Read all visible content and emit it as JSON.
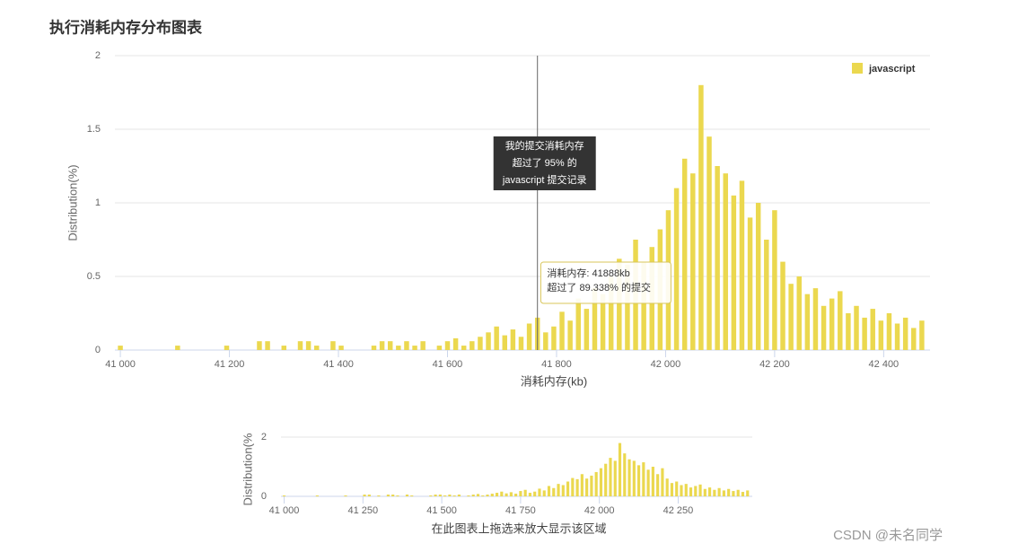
{
  "page_title": "执行消耗内存分布图表",
  "chart_data": {
    "type": "bar",
    "ylabel": "Distribution(%)",
    "xlabel": "消耗内存(kb)",
    "legend": "top-right",
    "grid": true,
    "xlim": [
      40990,
      42485
    ],
    "ylim": [
      0,
      2
    ],
    "yticks": [
      0,
      0.5,
      1,
      1.5,
      2
    ],
    "xticks": [
      {
        "value": 41000,
        "label": "41 000"
      },
      {
        "value": 41200,
        "label": "41 200"
      },
      {
        "value": 41400,
        "label": "41 400"
      },
      {
        "value": 41600,
        "label": "41 600"
      },
      {
        "value": 41800,
        "label": "41 800"
      },
      {
        "value": 42000,
        "label": "42 000"
      },
      {
        "value": 42200,
        "label": "42 200"
      },
      {
        "value": 42400,
        "label": "42 400"
      }
    ],
    "plot_line_x": 41765,
    "annotation": [
      "我的提交消耗内存",
      "超过了 95% 的",
      "javascript 提交记录"
    ],
    "tooltip": [
      "消耗内存: 41888kb",
      "超过了 89.338% 的提交"
    ],
    "tooltip_x": 41888,
    "series": [
      {
        "name": "javascript",
        "color": "#ebd84f",
        "x": [
          41000,
          41015,
          41030,
          41045,
          41060,
          41075,
          41090,
          41105,
          41120,
          41135,
          41150,
          41165,
          41180,
          41195,
          41210,
          41225,
          41240,
          41255,
          41270,
          41285,
          41300,
          41315,
          41330,
          41345,
          41360,
          41375,
          41390,
          41405,
          41420,
          41435,
          41450,
          41465,
          41480,
          41495,
          41510,
          41525,
          41540,
          41555,
          41570,
          41585,
          41600,
          41615,
          41630,
          41645,
          41660,
          41675,
          41690,
          41705,
          41720,
          41735,
          41750,
          41765,
          41780,
          41795,
          41810,
          41825,
          41840,
          41855,
          41870,
          41885,
          41900,
          41915,
          41930,
          41945,
          41960,
          41975,
          41990,
          42005,
          42020,
          42035,
          42050,
          42065,
          42080,
          42095,
          42110,
          42125,
          42140,
          42155,
          42170,
          42185,
          42200,
          42215,
          42230,
          42245,
          42260,
          42275,
          42290,
          42305,
          42320,
          42335,
          42350,
          42365,
          42380,
          42395,
          42410,
          42425,
          42440,
          42455,
          42470
        ],
        "values": [
          0.03,
          0,
          0,
          0,
          0,
          0,
          0,
          0.03,
          0,
          0,
          0,
          0,
          0,
          0.03,
          0,
          0,
          0,
          0.06,
          0.06,
          0,
          0.03,
          0,
          0.06,
          0.06,
          0.03,
          0,
          0.06,
          0.03,
          0,
          0,
          0,
          0.03,
          0.06,
          0.06,
          0.03,
          0.06,
          0.03,
          0.06,
          0,
          0.03,
          0.06,
          0.08,
          0.03,
          0.06,
          0.09,
          0.12,
          0.16,
          0.1,
          0.14,
          0.09,
          0.18,
          0.22,
          0.12,
          0.16,
          0.26,
          0.2,
          0.35,
          0.28,
          0.42,
          0.38,
          0.5,
          0.62,
          0.58,
          0.75,
          0.6,
          0.7,
          0.82,
          0.95,
          1.1,
          1.3,
          1.2,
          1.8,
          1.45,
          1.25,
          1.2,
          1.05,
          1.15,
          0.9,
          1.0,
          0.75,
          0.95,
          0.6,
          0.45,
          0.5,
          0.38,
          0.42,
          0.3,
          0.35,
          0.4,
          0.25,
          0.3,
          0.22,
          0.28,
          0.2,
          0.25,
          0.18,
          0.22,
          0.15,
          0.2
        ]
      }
    ]
  },
  "navigator": {
    "ylabel": "Distribution(%",
    "caption": "在此图表上拖选来放大显示该区域",
    "ylim": [
      0,
      2
    ],
    "yticks": [
      0,
      2
    ],
    "xticks": [
      {
        "value": 41000,
        "label": "41 000"
      },
      {
        "value": 41250,
        "label": "41 250"
      },
      {
        "value": 41500,
        "label": "41 500"
      },
      {
        "value": 41750,
        "label": "41 750"
      },
      {
        "value": 42000,
        "label": "42 000"
      },
      {
        "value": 42250,
        "label": "42 250"
      }
    ]
  },
  "watermark": "CSDN @未名同学"
}
